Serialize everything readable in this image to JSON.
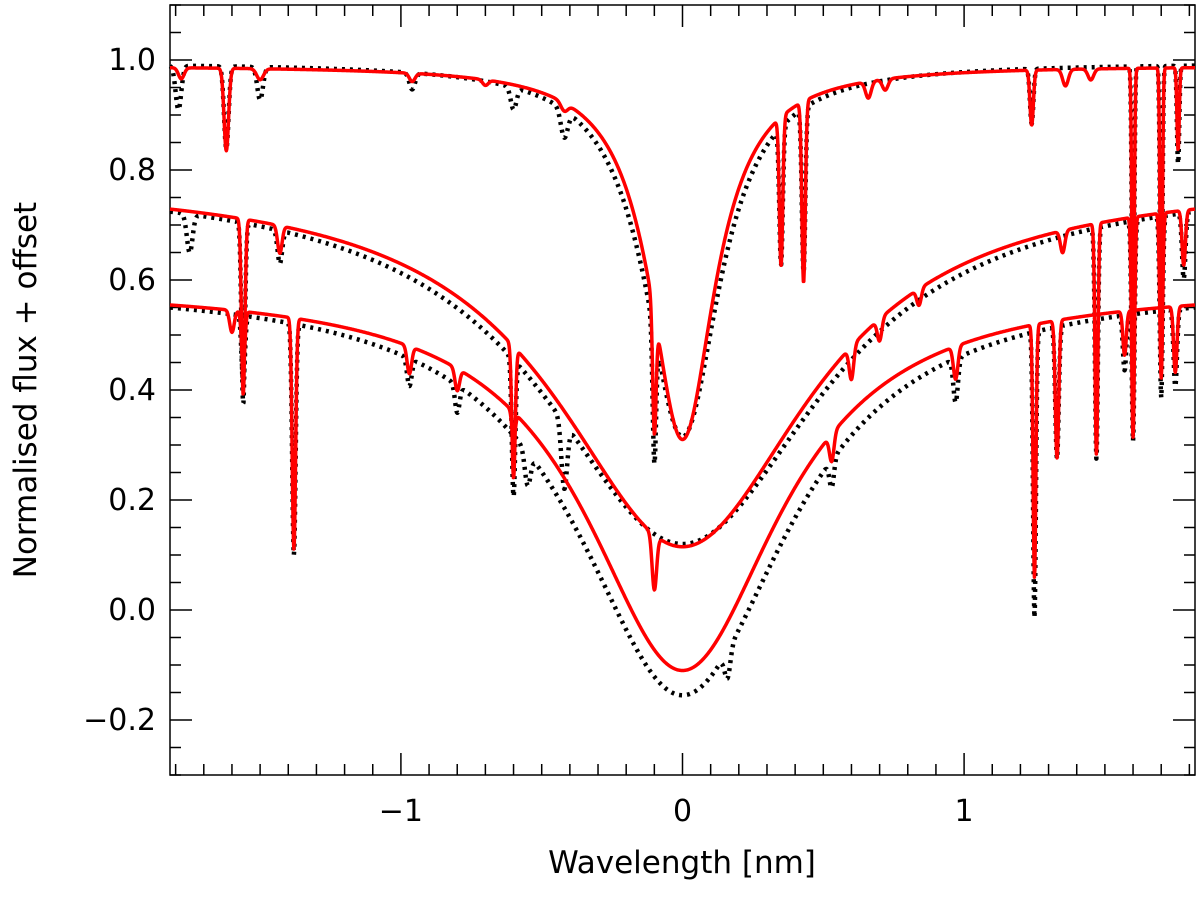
{
  "chart_data": {
    "type": "line",
    "title": "",
    "xlabel": "Wavelength [nm]",
    "ylabel": "Normalised flux + offset",
    "xlim": [
      -1.82,
      1.82
    ],
    "ylim": [
      -0.3,
      1.1
    ],
    "grid": false,
    "x_ticks": [
      {
        "value": -1,
        "label": "−1"
      },
      {
        "value": 0,
        "label": "0"
      },
      {
        "value": 1,
        "label": "1"
      }
    ],
    "y_ticks": [
      {
        "value": -0.2,
        "label": "−0.2"
      },
      {
        "value": 0.0,
        "label": "0.0"
      },
      {
        "value": 0.2,
        "label": "0.2"
      },
      {
        "value": 0.4,
        "label": "0.4"
      },
      {
        "value": 0.6,
        "label": "0.6"
      },
      {
        "value": 0.8,
        "label": "0.8"
      },
      {
        "value": 1.0,
        "label": "1.0"
      }
    ],
    "series": [
      {
        "name": "top-model",
        "color": "#ff0000",
        "style": "solid",
        "continuum": 0.99,
        "core": {
          "center": 0.0,
          "width": 0.14,
          "depth": 0.68
        },
        "lines": [
          [
            -1.78,
            0.01,
            0.02
          ],
          [
            -1.62,
            0.008,
            0.15
          ],
          [
            -1.5,
            0.012,
            0.02
          ],
          [
            -0.96,
            0.01,
            0.015
          ],
          [
            -0.7,
            0.01,
            0.01
          ],
          [
            -0.42,
            0.012,
            0.015
          ],
          [
            -0.1,
            0.006,
            0.22
          ],
          [
            0.35,
            0.006,
            0.27
          ],
          [
            0.43,
            0.006,
            0.33
          ],
          [
            0.66,
            0.01,
            0.03
          ],
          [
            0.72,
            0.01,
            0.02
          ],
          [
            1.24,
            0.006,
            0.1
          ],
          [
            1.36,
            0.01,
            0.03
          ],
          [
            1.45,
            0.01,
            0.02
          ],
          [
            1.6,
            0.004,
            0.55
          ],
          [
            1.7,
            0.004,
            0.52
          ],
          [
            1.76,
            0.004,
            0.15
          ]
        ]
      },
      {
        "name": "top-observed",
        "color": "#000000",
        "style": "dotted",
        "continuum": 0.995,
        "core": {
          "center": 0.0,
          "width": 0.16,
          "depth": 0.68
        },
        "lines": [
          [
            -1.79,
            0.01,
            0.08
          ],
          [
            -1.62,
            0.008,
            0.15
          ],
          [
            -1.5,
            0.01,
            0.06
          ],
          [
            -0.96,
            0.01,
            0.03
          ],
          [
            -0.6,
            0.01,
            0.04
          ],
          [
            -0.42,
            0.012,
            0.05
          ],
          [
            -0.1,
            0.006,
            0.24
          ],
          [
            0.35,
            0.006,
            0.25
          ],
          [
            0.43,
            0.006,
            0.3
          ],
          [
            1.24,
            0.006,
            0.1
          ],
          [
            1.6,
            0.004,
            0.56
          ],
          [
            1.7,
            0.004,
            0.54
          ],
          [
            1.76,
            0.004,
            0.18
          ]
        ]
      },
      {
        "name": "middle-model",
        "color": "#ff0000",
        "style": "solid",
        "continuum": 0.785,
        "core": {
          "center": 0.0,
          "width": 0.55,
          "depth": 0.67
        },
        "lines": [
          [
            -1.56,
            0.006,
            0.32
          ],
          [
            -1.43,
            0.008,
            0.05
          ],
          [
            -0.6,
            0.006,
            0.24
          ],
          [
            -0.1,
            0.008,
            0.1
          ],
          [
            0.6,
            0.008,
            0.06
          ],
          [
            0.7,
            0.008,
            0.04
          ],
          [
            0.84,
            0.008,
            0.03
          ],
          [
            1.35,
            0.008,
            0.04
          ],
          [
            1.47,
            0.005,
            0.42
          ],
          [
            1.6,
            0.005,
            0.4
          ],
          [
            1.7,
            0.005,
            0.3
          ],
          [
            1.78,
            0.006,
            0.1
          ]
        ]
      },
      {
        "name": "middle-observed",
        "color": "#000000",
        "style": "dotted",
        "continuum": 0.79,
        "core": {
          "center": 0.0,
          "width": 0.6,
          "depth": 0.67
        },
        "lines": [
          [
            -1.75,
            0.01,
            0.07
          ],
          [
            -1.56,
            0.006,
            0.33
          ],
          [
            -1.43,
            0.008,
            0.06
          ],
          [
            -0.6,
            0.006,
            0.25
          ],
          [
            -0.42,
            0.01,
            0.12
          ],
          [
            1.47,
            0.005,
            0.42
          ],
          [
            1.6,
            0.005,
            0.4
          ],
          [
            1.7,
            0.005,
            0.33
          ],
          [
            1.78,
            0.006,
            0.12
          ]
        ]
      },
      {
        "name": "bottom-model",
        "color": "#ff0000",
        "style": "solid",
        "continuum": 0.59,
        "core": {
          "center": 0.0,
          "width": 0.42,
          "depth": 0.7
        },
        "lines": [
          [
            -1.6,
            0.008,
            0.04
          ],
          [
            -1.56,
            0.006,
            0.1
          ],
          [
            -1.38,
            0.006,
            0.42
          ],
          [
            -0.97,
            0.008,
            0.05
          ],
          [
            -0.8,
            0.008,
            0.04
          ],
          [
            -0.6,
            0.006,
            0.05
          ],
          [
            0.53,
            0.008,
            0.05
          ],
          [
            0.97,
            0.008,
            0.06
          ],
          [
            1.25,
            0.005,
            0.46
          ],
          [
            1.33,
            0.006,
            0.25
          ],
          [
            1.57,
            0.006,
            0.08
          ],
          [
            1.75,
            0.006,
            0.12
          ]
        ]
      },
      {
        "name": "bottom-observed",
        "color": "#000000",
        "style": "dotted",
        "continuum": 0.595,
        "core": {
          "center": 0.0,
          "width": 0.46,
          "depth": 0.75
        },
        "lines": [
          [
            -1.56,
            0.006,
            0.12
          ],
          [
            -1.38,
            0.006,
            0.42
          ],
          [
            -0.97,
            0.008,
            0.05
          ],
          [
            -0.8,
            0.008,
            0.05
          ],
          [
            -0.55,
            0.01,
            0.06
          ],
          [
            0.16,
            0.01,
            0.05
          ],
          [
            0.53,
            0.008,
            0.05
          ],
          [
            0.97,
            0.008,
            0.08
          ],
          [
            1.25,
            0.005,
            0.52
          ],
          [
            1.33,
            0.006,
            0.24
          ],
          [
            1.57,
            0.006,
            0.1
          ],
          [
            1.75,
            0.006,
            0.14
          ]
        ]
      }
    ]
  }
}
